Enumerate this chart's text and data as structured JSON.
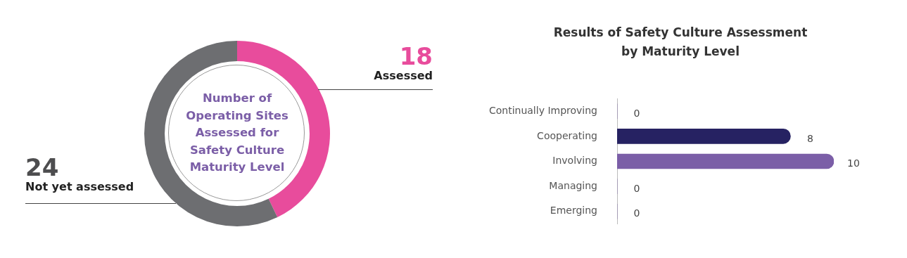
{
  "chart_data": [
    {
      "type": "donut",
      "title": "Number of Operating Sites Assessed for Safety Culture Maturity Level",
      "categories": [
        "Assessed",
        "Not yet assessed"
      ],
      "values": [
        18,
        24
      ],
      "colors": [
        "#e84c9c",
        "#6d6e71"
      ],
      "data_labels": true,
      "legend": false
    },
    {
      "type": "bar",
      "orientation": "horizontal",
      "title": "Results of Safety Culture Assessment by Maturity Level",
      "categories": [
        "Continually Improving",
        "Cooperating",
        "Involving",
        "Managing",
        "Emerging"
      ],
      "values": [
        0,
        8,
        10,
        0,
        0
      ],
      "colors": [
        "#7b5ea7",
        "#262262",
        "#7b5ea7",
        "#7b5ea7",
        "#7b5ea7"
      ],
      "data_labels": true,
      "legend": false
    }
  ]
}
